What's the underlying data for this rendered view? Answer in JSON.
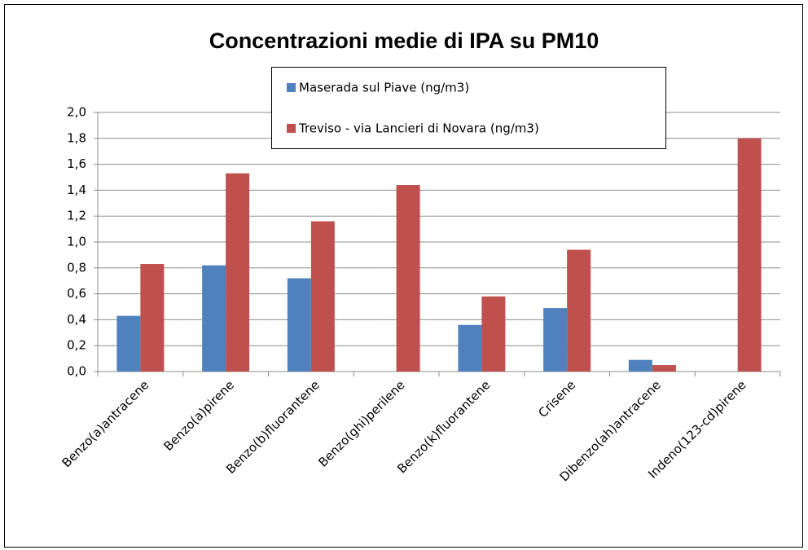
{
  "chart_data": {
    "type": "bar",
    "title": "Concentrazioni medie di IPA su PM10",
    "categories": [
      "Benzo(a)antracene",
      "Benzo(a)pirene",
      "Benzo(b)fluorantene",
      "Benzo(ghi)perilene",
      "Benzo(k)fluorantene",
      "Crisene",
      "Dibenzo(ah)antracene",
      "Indeno(123-cd)pirene"
    ],
    "series": [
      {
        "name": "Maserada sul Piave (ng/m3)",
        "color": "#4f81bd",
        "values": [
          0.43,
          0.82,
          0.72,
          null,
          0.36,
          0.49,
          0.09,
          null
        ]
      },
      {
        "name": "Treviso - via Lancieri di Novara (ng/m3)",
        "color": "#c0504d",
        "values": [
          0.83,
          1.53,
          1.16,
          1.44,
          0.58,
          0.94,
          0.05,
          1.8
        ]
      }
    ],
    "ylim": [
      0,
      2
    ],
    "yticks": [
      {
        "value": 0,
        "label": "0,0"
      },
      {
        "value": 0.2,
        "label": "0,2"
      },
      {
        "value": 0.4,
        "label": "0,4"
      },
      {
        "value": 0.6,
        "label": "0,6"
      },
      {
        "value": 0.8,
        "label": "0,8"
      },
      {
        "value": 1.0,
        "label": "1,0"
      },
      {
        "value": 1.2,
        "label": "1,2"
      },
      {
        "value": 1.4,
        "label": "1,4"
      },
      {
        "value": 1.6,
        "label": "1,6"
      },
      {
        "value": 1.8,
        "label": "1,8"
      },
      {
        "value": 2.0,
        "label": "2,0"
      }
    ],
    "grid": true
  }
}
